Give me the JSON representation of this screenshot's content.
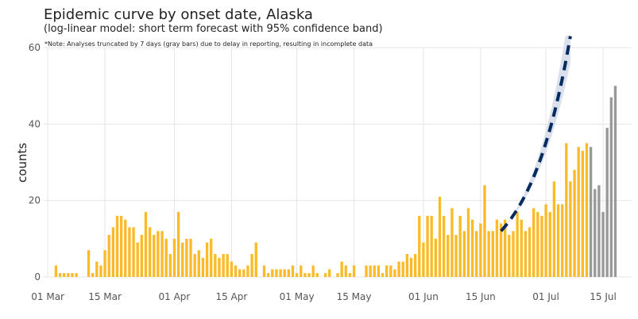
{
  "chart_data": {
    "type": "bar",
    "title": "Epidemic curve by onset date, Alaska",
    "subtitle": "(log-linear model: short term forecast with 95% confidence band)",
    "note": "*Note: Analyses truncated by 7 days (gray bars) due to delay in reporting, resulting in incomplete data",
    "ylabel": "counts",
    "xlabel": "",
    "ylim": [
      0,
      60
    ],
    "xlim": [
      "2020-02-29",
      "2020-07-22"
    ],
    "yticks": [
      0,
      20,
      40,
      60
    ],
    "xticks": [
      {
        "date": "2020-03-01",
        "label": "01 Mar"
      },
      {
        "date": "2020-03-15",
        "label": "15 Mar"
      },
      {
        "date": "2020-04-01",
        "label": "01 Apr"
      },
      {
        "date": "2020-04-15",
        "label": "15 Apr"
      },
      {
        "date": "2020-05-01",
        "label": "01 May"
      },
      {
        "date": "2020-05-15",
        "label": "15 May"
      },
      {
        "date": "2020-06-01",
        "label": "01 Jun"
      },
      {
        "date": "2020-06-15",
        "label": "15 Jun"
      },
      {
        "date": "2020-07-01",
        "label": "01 Jul"
      },
      {
        "date": "2020-07-15",
        "label": "15 Jul"
      }
    ],
    "grid": true,
    "start_date": "2020-03-03",
    "series": [
      {
        "values": [
          3,
          1,
          1,
          1,
          1,
          1,
          0,
          0,
          7,
          1,
          4,
          3,
          7,
          11,
          13,
          16,
          16,
          15,
          13,
          13,
          9,
          11,
          17,
          13,
          11,
          12,
          12,
          10,
          6,
          10,
          17,
          9,
          10,
          10,
          6,
          7,
          5,
          9,
          10,
          6,
          5,
          6,
          6,
          4,
          3,
          2,
          2,
          3,
          6,
          9,
          0,
          3,
          1,
          2,
          2,
          2,
          2,
          2,
          3,
          1,
          3,
          1,
          1,
          3,
          1,
          0,
          1,
          2,
          0,
          1,
          4,
          3,
          1,
          3,
          0,
          0,
          3,
          3,
          3,
          3,
          1,
          3,
          3,
          2,
          4,
          4,
          6,
          5,
          6,
          16,
          9,
          16,
          16,
          10,
          21,
          16,
          11,
          18,
          11,
          16,
          12,
          18,
          15,
          12,
          14,
          24,
          12,
          12,
          15,
          14,
          15,
          11,
          12,
          17,
          15,
          12,
          13,
          18,
          17,
          16,
          19,
          17,
          25,
          19,
          19,
          35,
          25,
          28,
          34,
          33,
          35
        ],
        "truncated_values": [
          34,
          23,
          24,
          17,
          39,
          47,
          50
        ],
        "color": "#FBBA27",
        "truncated_color": "#999999"
      },
      {
        "type": "forecast",
        "start": "2020-06-20",
        "end": "2020-07-07",
        "start_value": 12,
        "end_value": 63,
        "band_low_end": 56,
        "band_high_end": 72,
        "line_color": "#062B5E",
        "band_color": "#D7DDEB"
      }
    ]
  }
}
